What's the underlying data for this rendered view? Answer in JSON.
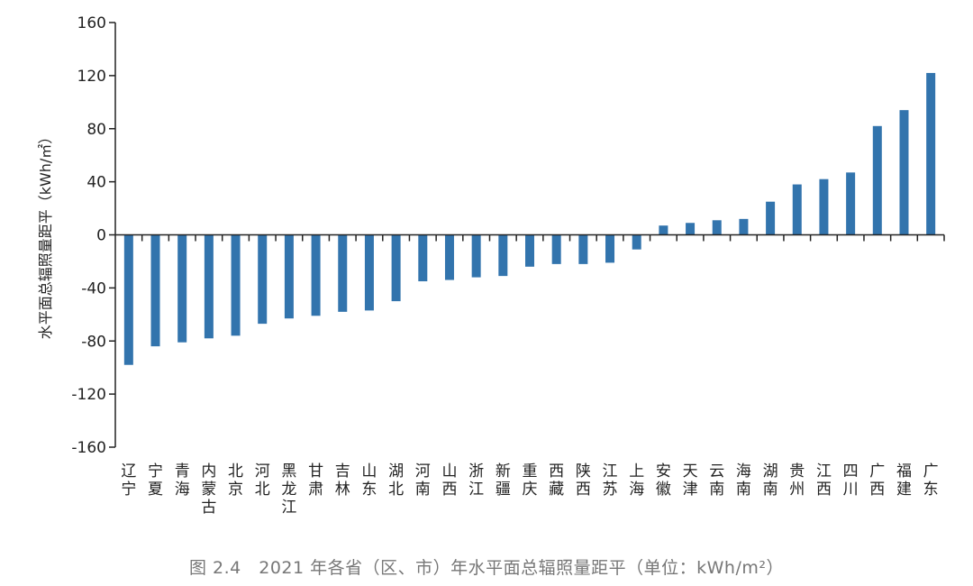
{
  "chart_data": {
    "type": "bar",
    "ylabel": "水平面总辐照量距平（kWh/㎡）",
    "ylim": [
      -160,
      160
    ],
    "yticks": [
      160,
      120,
      80,
      40,
      0,
      -40,
      -80,
      -120,
      -160
    ],
    "grid": false,
    "bar_color": "#3274ad",
    "categories": [
      "辽宁",
      "宁夏",
      "青海",
      "内蒙古",
      "北京",
      "河北",
      "黑龙江",
      "甘肃",
      "吉林",
      "山东",
      "湖北",
      "河南",
      "山西",
      "浙江",
      "新疆",
      "重庆",
      "西藏",
      "陕西",
      "江苏",
      "上海",
      "安徽",
      "天津",
      "云南",
      "海南",
      "湖南",
      "贵州",
      "江西",
      "四川",
      "广西",
      "福建",
      "广东"
    ],
    "values": [
      -98,
      -84,
      -81,
      -78,
      -76,
      -67,
      -63,
      -61,
      -58,
      -57,
      -50,
      -35,
      -34,
      -32,
      -31,
      -24,
      -22,
      -22,
      -21,
      -11,
      7,
      9,
      11,
      12,
      25,
      38,
      42,
      47,
      82,
      94,
      122
    ]
  },
  "caption": "图 2.4　2021 年各省（区、市）年水平面总辐照量距平（单位：kWh/m²）"
}
